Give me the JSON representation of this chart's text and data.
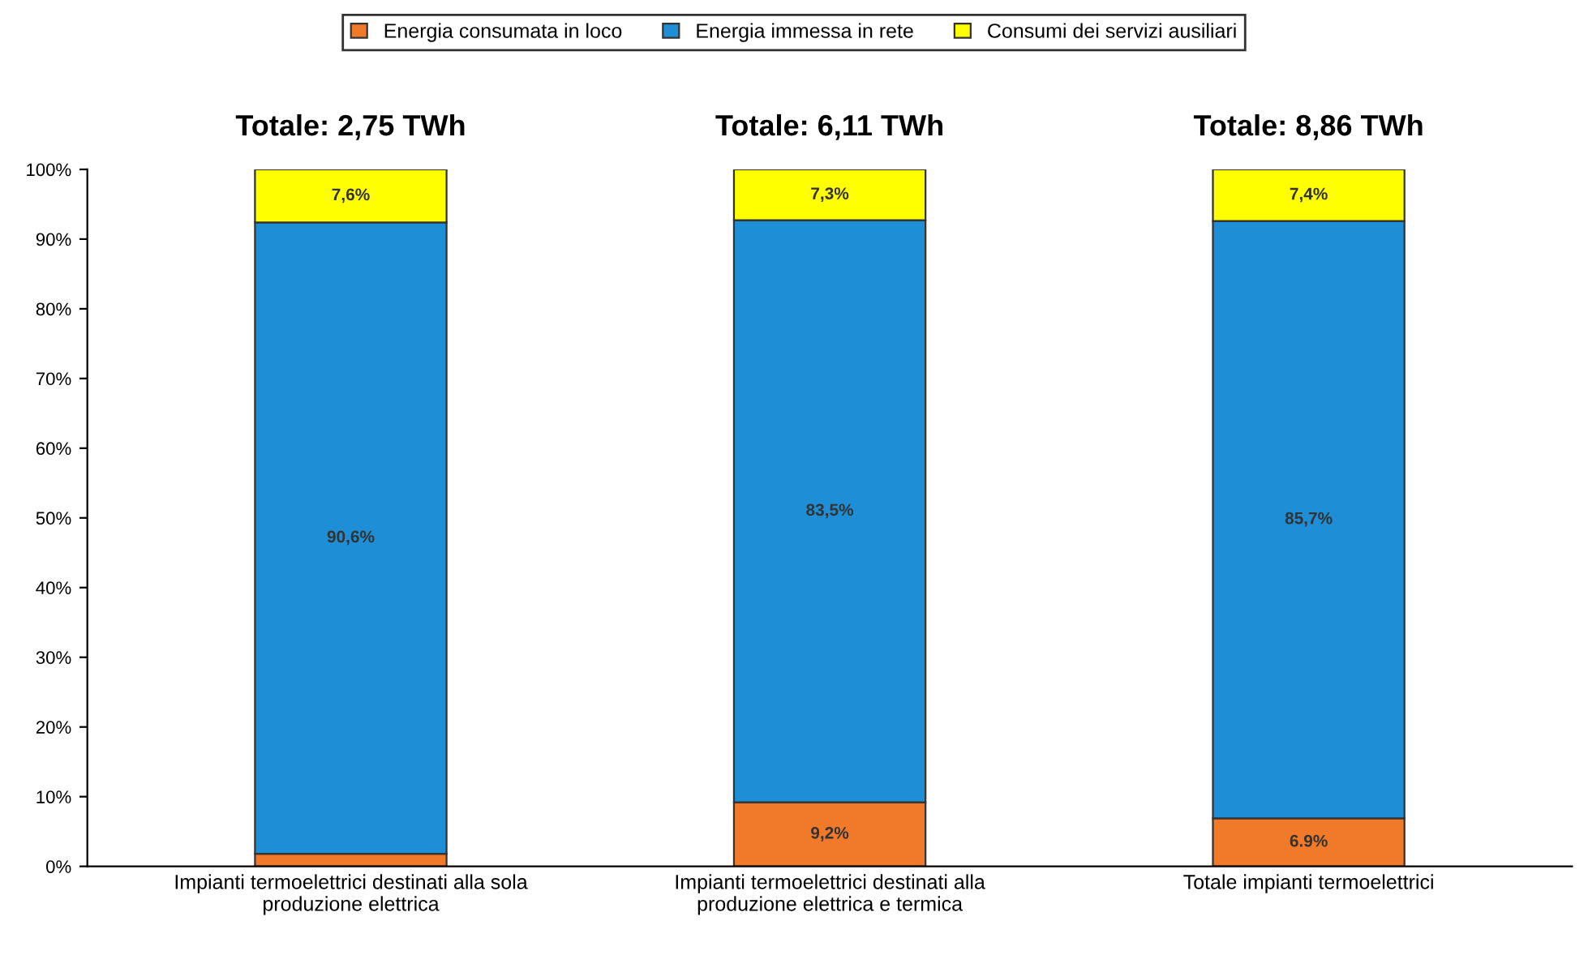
{
  "chart_data": {
    "type": "bar",
    "stacked": true,
    "categories": [
      "Impianti termoelettrici destinati alla sola\nproduzione elettrica",
      "Impianti termoelettrici destinati alla\nproduzione elettrica e termica",
      "Totale impianti termoelettrici"
    ],
    "series": [
      {
        "name": "Energia consumata in loco",
        "color": "#f07a2a",
        "values": [
          1.8,
          9.2,
          6.9
        ],
        "value_labels": [
          null,
          "9,2%",
          "6.9%"
        ]
      },
      {
        "name": "Energia immessa in rete",
        "color": "#1e8ed6",
        "values": [
          90.6,
          83.5,
          85.7
        ],
        "value_labels": [
          "90,6%",
          "83,5%",
          "85,7%"
        ]
      },
      {
        "name": "Consumi dei servizi ausiliari",
        "color": "#ffff00",
        "values": [
          7.6,
          7.3,
          7.4
        ],
        "value_labels": [
          "7,6%",
          "7,3%",
          "7,4%"
        ]
      }
    ],
    "annotations": [
      "Totale: 2,75 TWh",
      "Totale: 6,11 TWh",
      "Totale: 8,86 TWh"
    ],
    "ylim": [
      0,
      100
    ],
    "yticks": [
      {
        "value": 0,
        "label": "0%"
      },
      {
        "value": 10,
        "label": "10%"
      },
      {
        "value": 20,
        "label": "20%"
      },
      {
        "value": 30,
        "label": "30%"
      },
      {
        "value": 40,
        "label": "40%"
      },
      {
        "value": 50,
        "label": "50%"
      },
      {
        "value": 60,
        "label": "60%"
      },
      {
        "value": 70,
        "label": "70%"
      },
      {
        "value": 80,
        "label": "80%"
      },
      {
        "value": 90,
        "label": "90%"
      },
      {
        "value": 100,
        "label": "100%"
      }
    ],
    "grid": false,
    "legend": "top"
  }
}
